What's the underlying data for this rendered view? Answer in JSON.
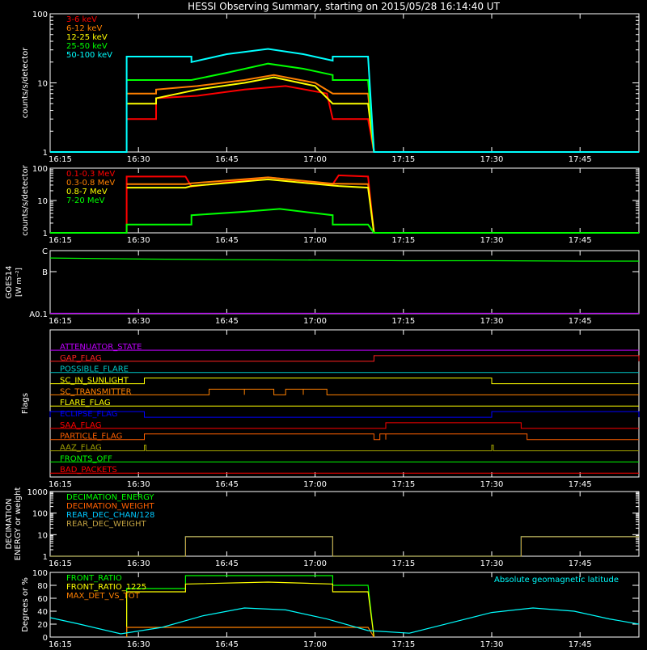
{
  "title": "HESSI Observing Summary, starting on 2015/05/28 16:14:40 UT",
  "time_axis": {
    "start": "16:15",
    "end": "17:55",
    "tick_labels": [
      "16:15",
      "16:30",
      "16:45",
      "17:00",
      "17:15",
      "17:30",
      "17:45"
    ]
  },
  "chart_data": [
    {
      "id": "lowenergy",
      "type": "line",
      "ylabel": "counts/s/detector",
      "yscale": "log",
      "ylim": [
        1,
        100
      ],
      "y_tick_labels": [
        "1",
        "10",
        "100"
      ],
      "legend_placement": "top-left",
      "series": [
        {
          "name": "3-6 keV",
          "color": "#ff0000",
          "x": [
            "16:28",
            "16:33",
            "16:33",
            "16:40",
            "16:48",
            "16:55",
            "17:02",
            "17:03",
            "17:09",
            "17:10"
          ],
          "y": [
            3,
            3,
            6,
            6.5,
            8,
            9,
            7,
            3,
            3,
            1
          ]
        },
        {
          "name": "6-12 keV",
          "color": "#ff8000",
          "x": [
            "16:28",
            "16:33",
            "16:33",
            "16:40",
            "16:48",
            "16:53",
            "17:00",
            "17:03",
            "17:09",
            "17:10"
          ],
          "y": [
            7,
            7,
            8,
            9,
            11,
            13,
            10,
            7,
            7,
            1
          ]
        },
        {
          "name": "12-25 keV",
          "color": "#ffff00",
          "x": [
            "16:28",
            "16:33",
            "16:33",
            "16:40",
            "16:48",
            "16:53",
            "17:00",
            "17:03",
            "17:09",
            "17:10"
          ],
          "y": [
            5,
            5,
            6,
            8,
            10,
            12,
            9,
            5,
            5,
            1
          ]
        },
        {
          "name": "25-50 keV",
          "color": "#00ff00",
          "x": [
            "16:28",
            "16:39",
            "16:39",
            "16:45",
            "16:52",
            "16:58",
            "17:03",
            "17:03",
            "17:09",
            "17:10"
          ],
          "y": [
            11,
            11,
            11,
            14,
            19,
            16,
            13,
            11,
            11,
            1
          ]
        },
        {
          "name": "50-100 keV",
          "color": "#00ffff",
          "x": [
            "16:15",
            "16:28",
            "16:28",
            "16:39",
            "16:39",
            "16:45",
            "16:52",
            "16:58",
            "17:03",
            "17:03",
            "17:09",
            "17:10",
            "17:55"
          ],
          "y": [
            1,
            1,
            24,
            24,
            20,
            26,
            31,
            26,
            21,
            24,
            24,
            1,
            1
          ]
        }
      ]
    },
    {
      "id": "highenergy",
      "type": "line",
      "ylabel": "counts/s/detector",
      "yscale": "log",
      "ylim": [
        1,
        100
      ],
      "y_tick_labels": [
        "1",
        "10",
        "100"
      ],
      "legend_placement": "top-left",
      "series": [
        {
          "name": "0.1-0.3 MeV",
          "color": "#ff0000",
          "x": [
            "16:15",
            "16:28",
            "16:28",
            "16:38",
            "16:39",
            "16:52",
            "17:03",
            "17:04",
            "17:09",
            "17:10",
            "17:55"
          ],
          "y": [
            1,
            1,
            55,
            55,
            27,
            52,
            32,
            60,
            55,
            1,
            1
          ]
        },
        {
          "name": "0.3-0.8 MeV",
          "color": "#ff8000",
          "x": [
            "16:28",
            "16:38",
            "16:39",
            "16:52",
            "17:03",
            "17:04",
            "17:09",
            "17:10"
          ],
          "y": [
            32,
            32,
            34,
            52,
            33,
            33,
            32,
            1
          ]
        },
        {
          "name": "0.8-7 MeV",
          "color": "#ffff00",
          "x": [
            "16:28",
            "16:38",
            "16:39",
            "16:52",
            "17:03",
            "17:04",
            "17:09",
            "17:10"
          ],
          "y": [
            25,
            25,
            28,
            45,
            29,
            28,
            25,
            1
          ]
        },
        {
          "name": "7-20 MeV",
          "color": "#00ff00",
          "x": [
            "16:15",
            "16:28",
            "16:28",
            "16:39",
            "16:39",
            "16:48",
            "16:54",
            "17:03",
            "17:03",
            "17:09",
            "17:10",
            "17:55"
          ],
          "y": [
            1,
            1,
            1.8,
            1.8,
            3.5,
            4.5,
            5.5,
            3.5,
            1.8,
            1.8,
            1,
            1
          ]
        }
      ]
    },
    {
      "id": "goes",
      "type": "line",
      "ylabel": "GOES14",
      "ylabel_unit": "[W m⁻²]",
      "y_tick_labels": [
        "A0.1",
        "B",
        "C"
      ],
      "ylim": [
        0,
        3
      ],
      "series": [
        {
          "name": "",
          "color": "#00ff00",
          "x": [
            "16:15",
            "16:30",
            "16:45",
            "17:00",
            "17:15",
            "17:30",
            "17:45",
            "17:55"
          ],
          "y": [
            2.65,
            2.6,
            2.57,
            2.55,
            2.52,
            2.52,
            2.5,
            2.5
          ]
        },
        {
          "name": "",
          "color": "#c000ff",
          "x": [
            "16:15",
            "17:55"
          ],
          "y": [
            0.02,
            0.02
          ]
        }
      ]
    },
    {
      "id": "flags",
      "type": "line",
      "ylabel": "Flags",
      "flags": [
        {
          "name": "ATTENUATOR_STATE",
          "color": "#c000ff",
          "on": []
        },
        {
          "name": "GAP_FLAG",
          "color": "#ff2020",
          "on": [
            [
              "17:10",
              "17:55"
            ]
          ]
        },
        {
          "name": "POSSIBLE_FLARE",
          "color": "#00c8c8",
          "on": []
        },
        {
          "name": "SC_IN_SUNLIGHT",
          "color": "#ffff00",
          "on": [
            [
              "16:31",
              "17:30"
            ]
          ]
        },
        {
          "name": "SC_TRANSMITTER",
          "color": "#ff8000",
          "on": [
            [
              "16:42",
              "16:48"
            ],
            [
              "16:48",
              "16:53"
            ],
            [
              "16:55",
              "16:58"
            ],
            [
              "16:58",
              "17:02"
            ]
          ]
        },
        {
          "name": "FLARE_FLAG",
          "color": "#ffff00",
          "on": []
        },
        {
          "name": "ECLIPSE_FLAG",
          "color": "#0000ff",
          "on": [
            [
              "16:15",
              "16:31"
            ],
            [
              "17:30",
              "17:55"
            ]
          ]
        },
        {
          "name": "SAA_FLAG",
          "color": "#ff0000",
          "on": [
            [
              "17:12",
              "17:35"
            ]
          ]
        },
        {
          "name": "PARTICLE_FLAG",
          "color": "#ff6000",
          "on": [
            [
              "16:31",
              "17:10"
            ],
            [
              "17:11",
              "17:12"
            ],
            [
              "17:12",
              "17:36"
            ]
          ]
        },
        {
          "name": "AAZ_FLAG",
          "color": "#a0a000",
          "on": [
            [
              "16:31",
              "16:31"
            ],
            [
              "17:30",
              "17:30"
            ]
          ]
        },
        {
          "name": "FRONTS_OFF",
          "color": "#00ff00",
          "on": []
        },
        {
          "name": "BAD_PACKETS",
          "color": "#ff0000",
          "on": []
        }
      ]
    },
    {
      "id": "decimation",
      "type": "line",
      "ylabel": "DECIMATION",
      "ylabel2": "ENERGY or weight",
      "yscale": "log",
      "ylim": [
        1,
        1000
      ],
      "y_tick_labels": [
        "1",
        "10",
        "100",
        "1000"
      ],
      "legend_placement": "top-left",
      "series": [
        {
          "name": "DECIMATION_ENERGY",
          "color": "#00ff00",
          "x": [],
          "y": []
        },
        {
          "name": "DECIMATION_WEIGHT",
          "color": "#ff6000",
          "x": [],
          "y": []
        },
        {
          "name": "REAR_DEC_CHAN/128",
          "color": "#00c8ff",
          "x": [
            "16:15",
            "16:38",
            "16:38",
            "17:03",
            "17:03",
            "17:35",
            "17:35",
            "17:55"
          ],
          "y": [
            1,
            1,
            8,
            8,
            1,
            1,
            8,
            8
          ]
        },
        {
          "name": "REAR_DEC_WEIGHT",
          "color": "#c0a040",
          "x": [
            "16:15",
            "16:38",
            "16:38",
            "17:03",
            "17:03",
            "17:35",
            "17:35",
            "17:55"
          ],
          "y": [
            1,
            1,
            8,
            8,
            1,
            1,
            8,
            8
          ]
        }
      ]
    },
    {
      "id": "ratio",
      "type": "line",
      "ylabel": "Degrees or %",
      "ylim": [
        0,
        100
      ],
      "y_tick_labels": [
        "0",
        "20",
        "40",
        "60",
        "80",
        "100"
      ],
      "legend_placement": "top-left",
      "annotation": "Absolute geomagnetic latitude",
      "series": [
        {
          "name": "FRONT_RATIO",
          "color": "#00ff00",
          "x": [
            "16:28",
            "16:28",
            "16:38",
            "16:38",
            "17:03",
            "17:03",
            "17:09",
            "17:10"
          ],
          "y": [
            0,
            75,
            75,
            95,
            95,
            80,
            80,
            0
          ]
        },
        {
          "name": "FRONT_RATIO_1225",
          "color": "#ffff00",
          "x": [
            "16:28",
            "16:28",
            "16:38",
            "16:38",
            "16:52",
            "17:03",
            "17:03",
            "17:09",
            "17:10"
          ],
          "y": [
            0,
            70,
            70,
            82,
            85,
            82,
            70,
            70,
            0
          ]
        },
        {
          "name": "MAX_DET_VS_TOT",
          "color": "#ff8000",
          "x": [
            "16:28",
            "16:28",
            "17:09",
            "17:10"
          ],
          "y": [
            0,
            15,
            15,
            0
          ]
        },
        {
          "name": "",
          "color": "#00ffff",
          "x": [
            "16:15",
            "16:20",
            "16:27",
            "16:34",
            "16:41",
            "16:48",
            "16:55",
            "17:02",
            "17:09",
            "17:16",
            "17:23",
            "17:30",
            "17:37",
            "17:44",
            "17:50",
            "17:55"
          ],
          "y": [
            30,
            20,
            5,
            15,
            33,
            45,
            42,
            28,
            10,
            6,
            22,
            38,
            45,
            40,
            28,
            20
          ]
        }
      ]
    }
  ]
}
